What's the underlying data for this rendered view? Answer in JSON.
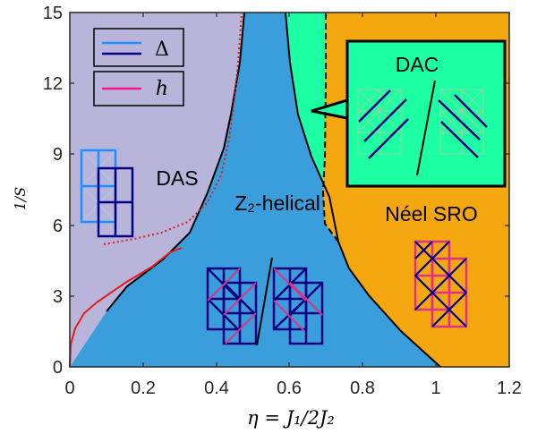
{
  "chart_data": {
    "type": "area",
    "xlabel": "η = J₁/2J₂",
    "ylabel": "1/S",
    "xlim": [
      0,
      1.2
    ],
    "ylim": [
      0,
      15
    ],
    "xticks": [
      "0",
      "0.2",
      "0.4",
      "0.6",
      "0.8",
      "1",
      "1.2"
    ],
    "yticks": [
      "0",
      "3",
      "6",
      "9",
      "12",
      "15"
    ],
    "grid": false,
    "legend": {
      "placement": "top-left",
      "entries": [
        {
          "label": "Δ",
          "colors": [
            "#1e90ff",
            "#000080"
          ]
        },
        {
          "label": "h",
          "colors": [
            "#ff1493"
          ]
        }
      ]
    },
    "regions": [
      {
        "label": "DAS",
        "color": "#b9b4da"
      },
      {
        "label": "Z₂-helical",
        "color": "#3a9edc"
      },
      {
        "label": "DAC",
        "color": "#1dffa3"
      },
      {
        "label": "Néel SRO",
        "color": "#f4a70f"
      }
    ],
    "boundaries": [
      {
        "name": "DAS/Z2-helical",
        "style": "solid",
        "color": "#000000",
        "x": [
          0.105,
          0.2,
          0.3,
          0.38,
          0.42,
          0.44,
          0.455,
          0.46
        ],
        "y": [
          2.3,
          3.3,
          4.9,
          6.6,
          8.7,
          10.7,
          12.8,
          15
        ]
      },
      {
        "name": "Z2-helical/Néel SRO (lower)",
        "style": "solid",
        "color": "#000000",
        "x": [
          1.0,
          0.92,
          0.84,
          0.77,
          0.72,
          0.7
        ],
        "y": [
          0,
          0.7,
          1.5,
          2.6,
          4.0,
          5.6
        ]
      },
      {
        "name": "Z2-helical/DAC",
        "style": "solid",
        "color": "#000000",
        "x": [
          0.7,
          0.66,
          0.63,
          0.61,
          0.595,
          0.585
        ],
        "y": [
          5.6,
          7.3,
          9.0,
          10.9,
          13.0,
          15
        ]
      },
      {
        "name": "DAC/Néel SRO",
        "style": "dashed",
        "color": "#000000",
        "x": [
          0.7,
          0.71,
          0.71,
          0.71,
          0.71
        ],
        "y": [
          5.6,
          7.3,
          9.6,
          12.5,
          15
        ]
      },
      {
        "name": "h onset (solid)",
        "style": "solid",
        "color": "#e31a1c",
        "x": [
          0.0,
          0.02,
          0.05,
          0.1,
          0.2,
          0.3
        ],
        "y": [
          0.0,
          0.9,
          1.6,
          2.3,
          3.4,
          5.0
        ]
      },
      {
        "name": "h (dotted)",
        "style": "dotted",
        "color": "#e31a1c",
        "x": [
          0.1,
          0.25,
          0.37,
          0.43,
          0.46
        ],
        "y": [
          5.1,
          5.9,
          8.0,
          11.0,
          15
        ]
      }
    ]
  }
}
